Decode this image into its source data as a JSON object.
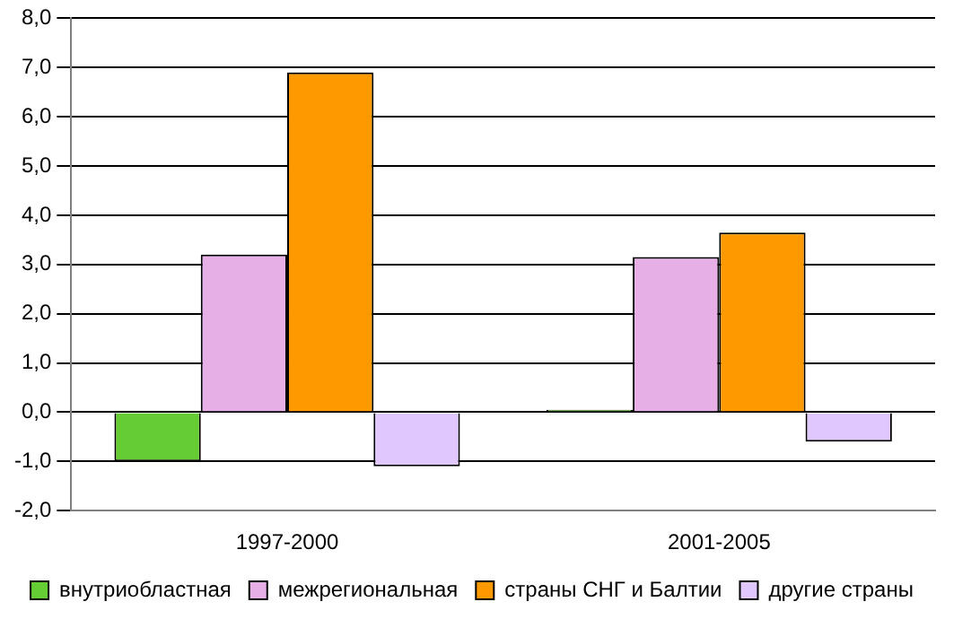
{
  "chart_data": {
    "type": "bar",
    "categories": [
      "1997-2000",
      "2001-2005"
    ],
    "series": [
      {
        "name": "внутриобластная",
        "color": "#66cc33",
        "values": [
          -1.0,
          0.05
        ]
      },
      {
        "name": "межрегиональная",
        "color": "#e6b0e6",
        "values": [
          3.2,
          3.15
        ]
      },
      {
        "name": "страны СНГ и Балтии",
        "color": "#ff9900",
        "values": [
          6.9,
          3.65
        ]
      },
      {
        "name": "другие страны",
        "color": "#e0c8ff",
        "values": [
          -1.1,
          -0.6
        ]
      }
    ],
    "ylim": [
      -2,
      8
    ],
    "yticks": [
      {
        "value": -2,
        "label": "-2,0"
      },
      {
        "value": -1,
        "label": "-1,0"
      },
      {
        "value": 0,
        "label": "0,0"
      },
      {
        "value": 1,
        "label": "1,0"
      },
      {
        "value": 2,
        "label": "2,0"
      },
      {
        "value": 3,
        "label": "3,0"
      },
      {
        "value": 4,
        "label": "4,0"
      },
      {
        "value": 5,
        "label": "5,0"
      },
      {
        "value": 6,
        "label": "6,0"
      },
      {
        "value": 7,
        "label": "7,0"
      },
      {
        "value": 8,
        "label": "8,0"
      }
    ],
    "grid": "y",
    "legend": "bottom"
  }
}
